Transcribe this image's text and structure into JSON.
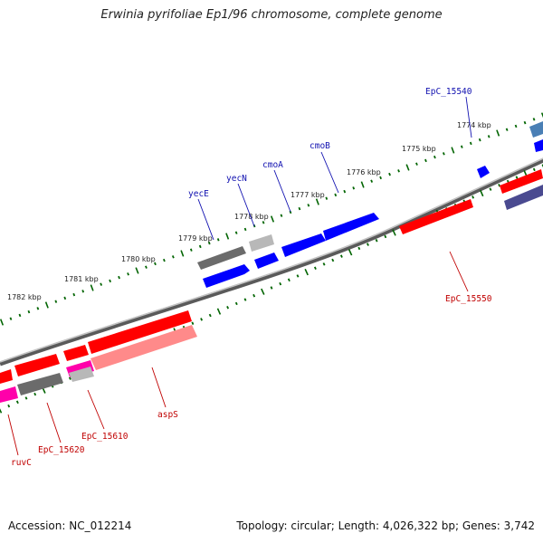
{
  "title": "Erwinia pyrifoliae Ep1/96 chromosome, complete genome",
  "accession_line": "Accession: NC_012214",
  "summary_line": "Topology: circular; Length: 4,026,322 bp; Genes: 3,742",
  "kbp_labels": [
    "1774 kbp",
    "1775 kbp",
    "1776 kbp",
    "1777 kbp",
    "1778 kbp",
    "1779 kbp",
    "1780 kbp",
    "1781 kbp",
    "1782 kbp"
  ],
  "gene_labels_top": [
    "EpC_15540",
    "cmoB",
    "cmoA",
    "yecN",
    "yecE"
  ],
  "gene_labels_bottom": [
    "EpC_15550",
    "aspS",
    "EpC_15610",
    "EpC_15620",
    "ruvC"
  ],
  "colors": {
    "forward_red": "#ff0000",
    "reverse_blue": "#0000ff",
    "gray_gene": "#6b6b6b",
    "magenta_gene": "#ff00aa",
    "pink_gene": "#ff8a8a",
    "steelblue_gene": "#4a7fb5",
    "slate_gene": "#4a4a90",
    "tick_green": "#006400",
    "backbone": "#8a8a8a"
  }
}
